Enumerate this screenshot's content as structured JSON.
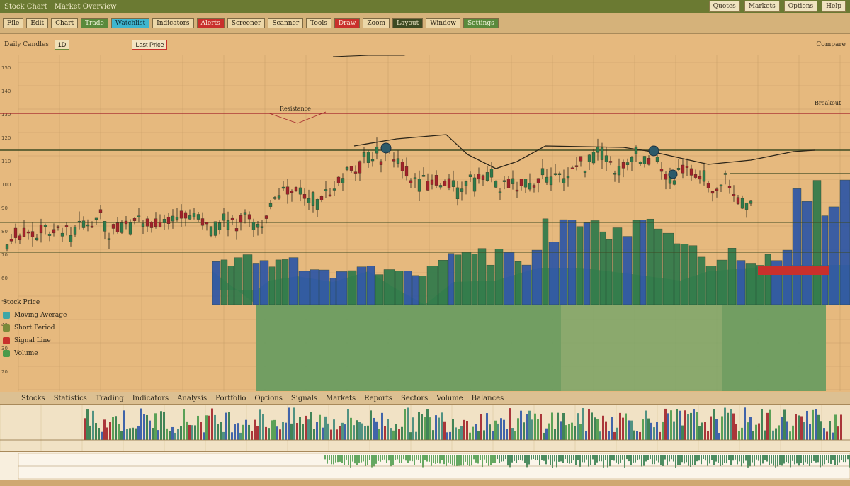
{
  "app": {
    "title": "Stock Chart",
    "title_extra": "Market Overview",
    "title_right": [
      "Quotes",
      "Markets",
      "Options",
      "Help"
    ]
  },
  "toolbar": {
    "items": [
      {
        "label": "File",
        "style": "plain"
      },
      {
        "label": "Edit",
        "style": "plain"
      },
      {
        "label": "Chart",
        "style": "plain"
      },
      {
        "label": "Trade",
        "style": "green"
      },
      {
        "label": "Watchlist",
        "style": "cyan"
      },
      {
        "label": "Indicators",
        "style": "plain"
      },
      {
        "label": "Alerts",
        "style": "red"
      },
      {
        "label": "Screener",
        "style": "plain"
      },
      {
        "label": "Scanner",
        "style": "plain"
      },
      {
        "label": "Tools",
        "style": "plain"
      },
      {
        "label": "Draw",
        "style": "red"
      },
      {
        "label": "Zoom",
        "style": "plain"
      },
      {
        "label": "Layout",
        "style": "dark"
      },
      {
        "label": "Window",
        "style": "plain"
      },
      {
        "label": "Settings",
        "style": "green"
      }
    ]
  },
  "subbar": {
    "symbol_label": "Daily Candles",
    "timeframe": "1D",
    "price_tag": "Last Price",
    "top_right": "Compare"
  },
  "yaxis_ticks": [
    "150",
    "140",
    "130",
    "120",
    "110",
    "100",
    "90",
    "80",
    "70",
    "60",
    "50",
    "40",
    "30",
    "20"
  ],
  "annotations": {
    "line_label": "Resistance",
    "right_label": "Breakout"
  },
  "legend": {
    "header": "Stock Price",
    "items": [
      {
        "label": "Moving Average",
        "color": "#3fa7a7"
      },
      {
        "label": "Short Period",
        "color": "#7a8a3a"
      },
      {
        "label": "Signal Line",
        "color": "#c9302c"
      },
      {
        "label": "Volume",
        "color": "#4a9a4a"
      }
    ]
  },
  "bottom_labels": [
    "Stocks",
    "Statistics",
    "Trading",
    "Indicators",
    "Analysis",
    "Portfolio",
    "Options",
    "Signals",
    "Markets",
    "Reports",
    "Sectors",
    "Volume",
    "Balances"
  ],
  "colors": {
    "bull": "#2f7a4a",
    "bear": "#a2232a",
    "blue": "#2d56a6",
    "teal": "#3f8a7a",
    "area": "#7aa66a"
  }
}
